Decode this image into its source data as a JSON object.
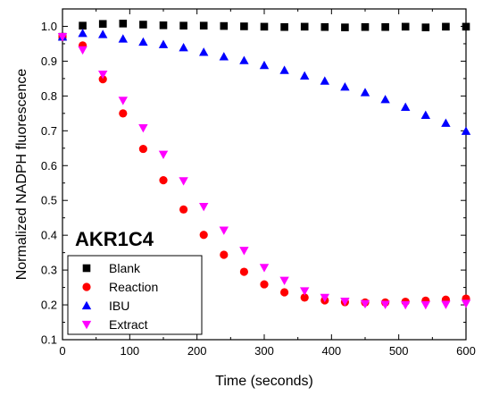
{
  "chart_data": {
    "type": "scatter",
    "title": "",
    "annotation": "AKR1C4",
    "xlabel": "Time (seconds)",
    "ylabel": "Normalized NADPH fluorescence",
    "xlim": [
      0,
      600
    ],
    "ylim": [
      0.1,
      1.05
    ],
    "xticks": [
      "0",
      "100",
      "200",
      "300",
      "400",
      "500",
      "600"
    ],
    "yticks": [
      "0.1",
      "0.2",
      "0.3",
      "0.4",
      "0.5",
      "0.6",
      "0.7",
      "0.8",
      "0.9",
      "1.0"
    ],
    "grid": false,
    "legend": "bottom-left",
    "x": [
      0,
      30,
      60,
      90,
      120,
      150,
      180,
      210,
      240,
      270,
      300,
      330,
      360,
      390,
      420,
      450,
      480,
      510,
      540,
      570,
      600
    ],
    "series": [
      {
        "name": "Blank",
        "marker": "square",
        "color": "#000000",
        "values": [
          0.97,
          1.002,
          1.007,
          1.008,
          1.005,
          1.003,
          1.002,
          1.002,
          1.001,
          1.0,
          0.999,
          0.998,
          0.999,
          0.998,
          0.997,
          0.998,
          0.998,
          0.999,
          0.997,
          0.999,
          0.999
        ]
      },
      {
        "name": "Reaction",
        "marker": "circle",
        "color": "#ff0000",
        "values": [
          0.97,
          0.945,
          0.848,
          0.75,
          0.648,
          0.558,
          0.474,
          0.401,
          0.344,
          0.295,
          0.259,
          0.236,
          0.221,
          0.213,
          0.208,
          0.207,
          0.207,
          0.209,
          0.212,
          0.215,
          0.218
        ]
      },
      {
        "name": "IBU",
        "marker": "triangle-up",
        "color": "#0000ff",
        "values": [
          0.97,
          0.98,
          0.977,
          0.964,
          0.955,
          0.948,
          0.939,
          0.926,
          0.913,
          0.902,
          0.888,
          0.874,
          0.858,
          0.843,
          0.826,
          0.81,
          0.79,
          0.768,
          0.745,
          0.722,
          0.699
        ]
      },
      {
        "name": "Extract",
        "marker": "triangle-down",
        "color": "#ff00ff",
        "values": [
          0.97,
          0.932,
          0.862,
          0.787,
          0.708,
          0.632,
          0.556,
          0.482,
          0.414,
          0.356,
          0.307,
          0.27,
          0.24,
          0.221,
          0.21,
          0.203,
          0.201,
          0.2,
          0.2,
          0.201,
          0.204
        ]
      }
    ]
  }
}
